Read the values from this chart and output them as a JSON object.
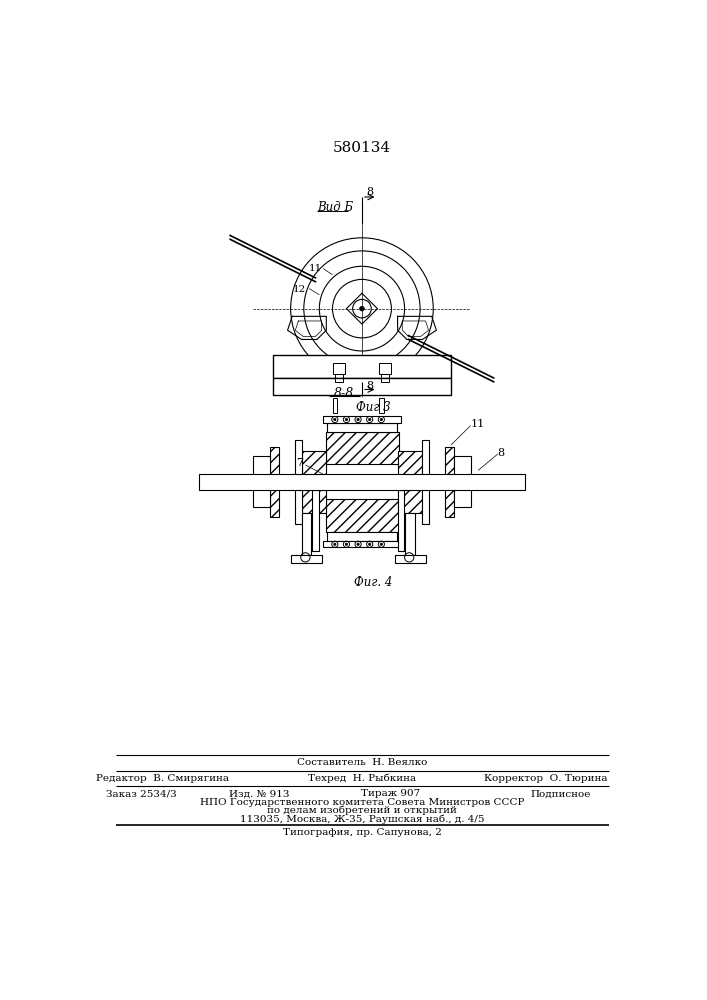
{
  "title": "580134",
  "background_color": "#ffffff",
  "fig3_label": "Фиг 3",
  "fig4_label": "Фиг. 4",
  "view_label": "Вид Б",
  "section_label": "8-8",
  "footer_line1": "Составитель  Н. Веялко",
  "footer_line2_left": "Редактор  В. Смирягина",
  "footer_line2_mid": "Техред  Н. Рыбкина",
  "footer_line2_right": "Корректор  О. Тюрина",
  "footer_line3_left": "Заказ 2534/3",
  "footer_line3_mid1": "Изд. № 913",
  "footer_line3_mid2": "Тираж 907",
  "footer_line3_right": "Подписное",
  "footer_line4": "НПО Государственного комитета Совета Министров СССР",
  "footer_line5": "по делам изобретений и открытий",
  "footer_line6": "113035, Москва, Ж-35, Раушская наб., д. 4/5",
  "footer_line7": "Типография, пр. Сапунова, 2"
}
